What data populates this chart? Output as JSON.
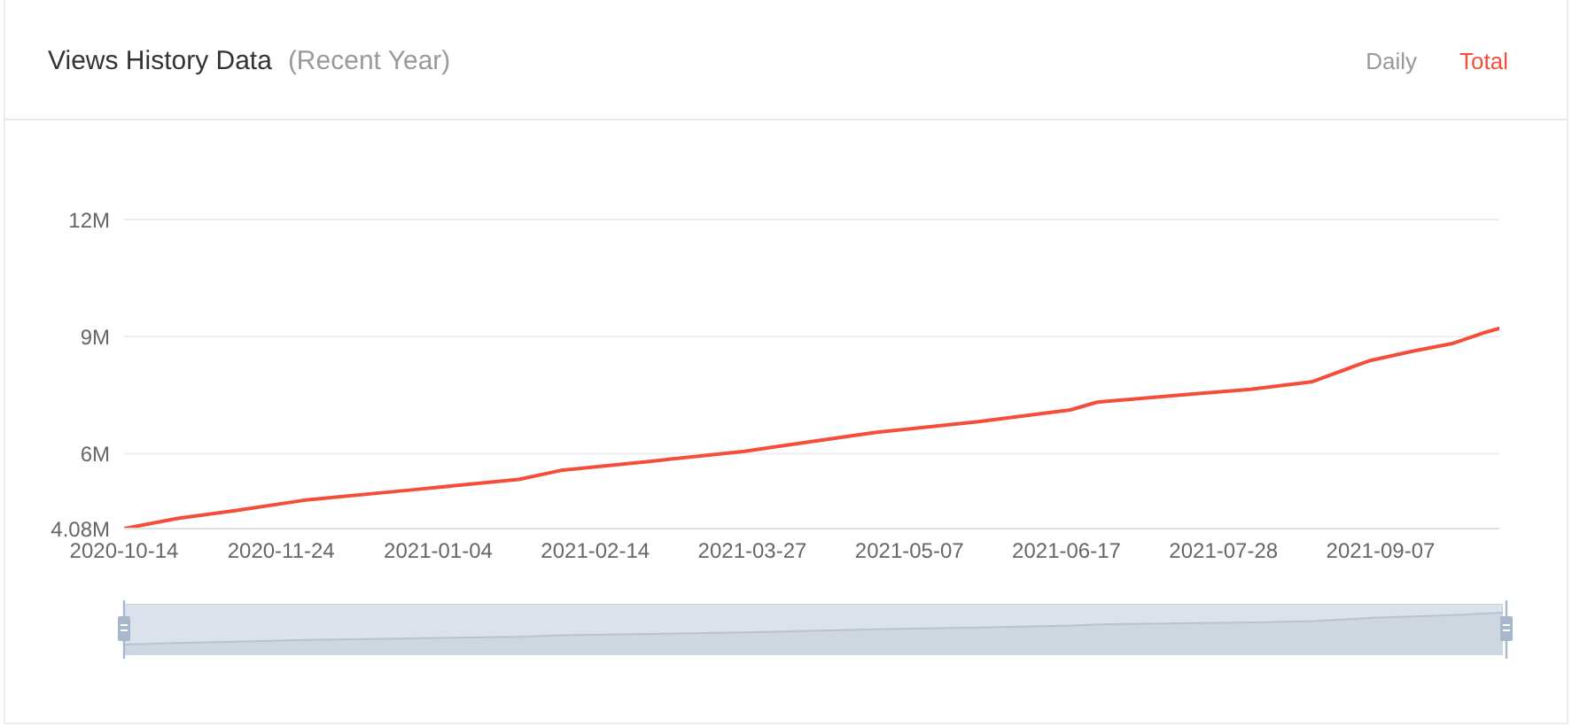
{
  "chart_data": {
    "type": "line",
    "title": "Views History Data",
    "subtitle": "(Recent Year)",
    "annotations": [
      "Daily"
    ],
    "x": [
      "2020-10-14",
      "2020-10-28",
      "2020-11-12",
      "2020-12-01",
      "2020-12-28",
      "2021-01-25",
      "2021-02-05",
      "2021-02-28",
      "2021-03-25",
      "2021-04-03",
      "2021-04-28",
      "2021-05-25",
      "2021-06-18",
      "2021-06-25",
      "2021-07-20",
      "2021-08-04",
      "2021-08-20",
      "2021-09-04",
      "2021-09-15",
      "2021-09-26",
      "2021-10-04",
      "2021-10-08"
    ],
    "series": [
      {
        "name": "Total",
        "color": "#f44e3b",
        "values": [
          4.08,
          4.34,
          4.54,
          4.82,
          5.07,
          5.34,
          5.57,
          5.8,
          6.06,
          6.19,
          6.54,
          6.82,
          7.12,
          7.32,
          7.53,
          7.65,
          7.84,
          8.38,
          8.62,
          8.83,
          9.1,
          9.21
        ]
      }
    ],
    "xlim": [
      "2020-10-14",
      "2021-10-08"
    ],
    "xticks": [
      "2020-10-14",
      "2020-11-24",
      "2021-01-04",
      "2021-02-14",
      "2021-03-27",
      "2021-05-07",
      "2021-06-17",
      "2021-07-28",
      "2021-09-07"
    ],
    "ylim": [
      4.08,
      12
    ],
    "yticks": [
      {
        "value": 4.08,
        "label": "4.08M"
      },
      {
        "value": 6,
        "label": "6M"
      },
      {
        "value": 9,
        "label": "9M"
      },
      {
        "value": 12,
        "label": "12M"
      }
    ],
    "grid": "y",
    "legend": "top right"
  }
}
